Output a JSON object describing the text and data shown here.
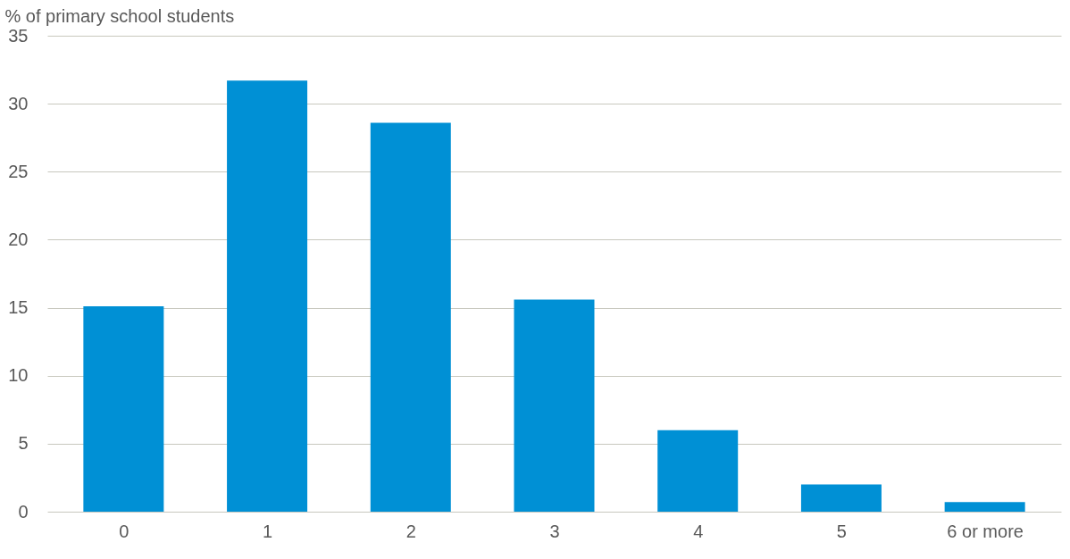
{
  "chart_data": {
    "type": "bar",
    "ylabel": "% of primary school students",
    "categories": [
      "0",
      "1",
      "2",
      "3",
      "4",
      "5",
      "6 or more"
    ],
    "values": [
      15.1,
      31.7,
      28.6,
      15.6,
      6.0,
      2.0,
      0.7
    ],
    "color": "#0090d5",
    "ylim": [
      0,
      35
    ],
    "yticks": [
      0,
      5,
      10,
      15,
      20,
      25,
      30,
      35
    ],
    "grid": "y"
  }
}
